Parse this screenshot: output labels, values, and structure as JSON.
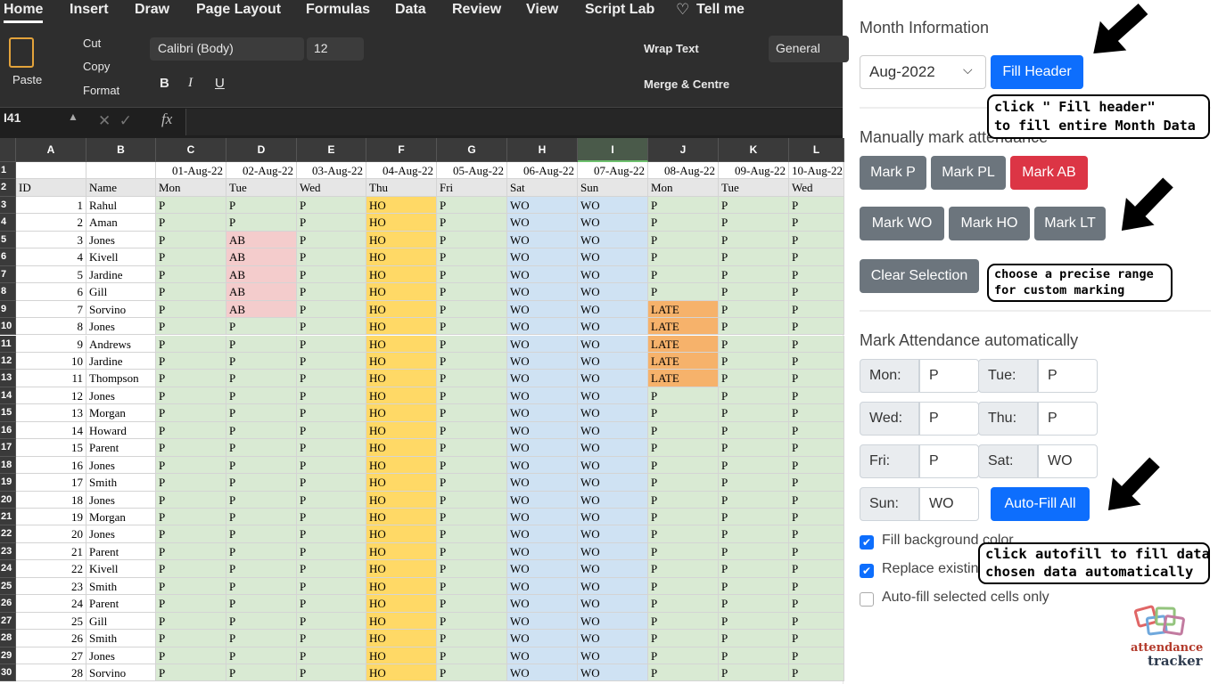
{
  "ribbon": {
    "tabs": [
      "Home",
      "Insert",
      "Draw",
      "Page Layout",
      "Formulas",
      "Data",
      "Review",
      "View",
      "Script Lab",
      "Tell me"
    ],
    "paste": "Paste",
    "cut": "Cut",
    "copy": "Copy",
    "format": "Format",
    "font": "Calibri (Body)",
    "font_size": "12",
    "bold": "B",
    "italic": "I",
    "underline": "U",
    "wrap_text": "Wrap Text",
    "merge": "Merge & Centre",
    "number_format": "General"
  },
  "formula_bar": {
    "name_box": "I41",
    "fx": "fx"
  },
  "sheet": {
    "column_letters": [
      "A",
      "B",
      "C",
      "D",
      "E",
      "F",
      "G",
      "H",
      "I",
      "J",
      "K",
      "L"
    ],
    "row_numbers": [
      1,
      2,
      3,
      4,
      5,
      6,
      7,
      8,
      9,
      10,
      11,
      12,
      13,
      14,
      15,
      16,
      17,
      18,
      19,
      20,
      21,
      22,
      23,
      24,
      25,
      26,
      27,
      28,
      29,
      30
    ],
    "dates": [
      "01-Aug-22",
      "02-Aug-22",
      "03-Aug-22",
      "04-Aug-22",
      "05-Aug-22",
      "06-Aug-22",
      "07-Aug-22",
      "08-Aug-22",
      "09-Aug-22",
      "10-Aug-22"
    ],
    "id_header": "ID",
    "name_header": "Name",
    "days": [
      "Mon",
      "Tue",
      "Wed",
      "Thu",
      "Fri",
      "Sat",
      "Sun",
      "Mon",
      "Tue",
      "Wed"
    ],
    "rows": [
      [
        1,
        "Rahul",
        "P",
        "P",
        "P",
        "HO",
        "P",
        "WO",
        "WO",
        "P",
        "P",
        "P"
      ],
      [
        2,
        "Aman",
        "P",
        "P",
        "P",
        "HO",
        "P",
        "WO",
        "WO",
        "P",
        "P",
        "P"
      ],
      [
        3,
        "Jones",
        "P",
        "AB",
        "P",
        "HO",
        "P",
        "WO",
        "WO",
        "P",
        "P",
        "P"
      ],
      [
        4,
        "Kivell",
        "P",
        "AB",
        "P",
        "HO",
        "P",
        "WO",
        "WO",
        "P",
        "P",
        "P"
      ],
      [
        5,
        "Jardine",
        "P",
        "AB",
        "P",
        "HO",
        "P",
        "WO",
        "WO",
        "P",
        "P",
        "P"
      ],
      [
        6,
        "Gill",
        "P",
        "AB",
        "P",
        "HO",
        "P",
        "WO",
        "WO",
        "P",
        "P",
        "P"
      ],
      [
        7,
        "Sorvino",
        "P",
        "AB",
        "P",
        "HO",
        "P",
        "WO",
        "WO",
        "LATE",
        "P",
        "P"
      ],
      [
        8,
        "Jones",
        "P",
        "P",
        "P",
        "HO",
        "P",
        "WO",
        "WO",
        "LATE",
        "P",
        "P"
      ],
      [
        9,
        "Andrews",
        "P",
        "P",
        "P",
        "HO",
        "P",
        "WO",
        "WO",
        "LATE",
        "P",
        "P"
      ],
      [
        10,
        "Jardine",
        "P",
        "P",
        "P",
        "HO",
        "P",
        "WO",
        "WO",
        "LATE",
        "P",
        "P"
      ],
      [
        11,
        "Thompson",
        "P",
        "P",
        "P",
        "HO",
        "P",
        "WO",
        "WO",
        "LATE",
        "P",
        "P"
      ],
      [
        12,
        "Jones",
        "P",
        "P",
        "P",
        "HO",
        "P",
        "WO",
        "WO",
        "P",
        "P",
        "P"
      ],
      [
        13,
        "Morgan",
        "P",
        "P",
        "P",
        "HO",
        "P",
        "WO",
        "WO",
        "P",
        "P",
        "P"
      ],
      [
        14,
        "Howard",
        "P",
        "P",
        "P",
        "HO",
        "P",
        "WO",
        "WO",
        "P",
        "P",
        "P"
      ],
      [
        15,
        "Parent",
        "P",
        "P",
        "P",
        "HO",
        "P",
        "WO",
        "WO",
        "P",
        "P",
        "P"
      ],
      [
        16,
        "Jones",
        "P",
        "P",
        "P",
        "HO",
        "P",
        "WO",
        "WO",
        "P",
        "P",
        "P"
      ],
      [
        17,
        "Smith",
        "P",
        "P",
        "P",
        "HO",
        "P",
        "WO",
        "WO",
        "P",
        "P",
        "P"
      ],
      [
        18,
        "Jones",
        "P",
        "P",
        "P",
        "HO",
        "P",
        "WO",
        "WO",
        "P",
        "P",
        "P"
      ],
      [
        19,
        "Morgan",
        "P",
        "P",
        "P",
        "HO",
        "P",
        "WO",
        "WO",
        "P",
        "P",
        "P"
      ],
      [
        20,
        "Jones",
        "P",
        "P",
        "P",
        "HO",
        "P",
        "WO",
        "WO",
        "P",
        "P",
        "P"
      ],
      [
        21,
        "Parent",
        "P",
        "P",
        "P",
        "HO",
        "P",
        "WO",
        "WO",
        "P",
        "P",
        "P"
      ],
      [
        22,
        "Kivell",
        "P",
        "P",
        "P",
        "HO",
        "P",
        "WO",
        "WO",
        "P",
        "P",
        "P"
      ],
      [
        23,
        "Smith",
        "P",
        "P",
        "P",
        "HO",
        "P",
        "WO",
        "WO",
        "P",
        "P",
        "P"
      ],
      [
        24,
        "Parent",
        "P",
        "P",
        "P",
        "HO",
        "P",
        "WO",
        "WO",
        "P",
        "P",
        "P"
      ],
      [
        25,
        "Gill",
        "P",
        "P",
        "P",
        "HO",
        "P",
        "WO",
        "WO",
        "P",
        "P",
        "P"
      ],
      [
        26,
        "Smith",
        "P",
        "P",
        "P",
        "HO",
        "P",
        "WO",
        "WO",
        "P",
        "P",
        "P"
      ],
      [
        27,
        "Jones",
        "P",
        "P",
        "P",
        "HO",
        "P",
        "WO",
        "WO",
        "P",
        "P",
        "P"
      ],
      [
        28,
        "Sorvino",
        "P",
        "P",
        "P",
        "HO",
        "P",
        "WO",
        "WO",
        "P",
        "P",
        "P"
      ]
    ],
    "column_fills": [
      "#d9ead3",
      "#d9ead3",
      "#d9ead3",
      "#ffd966",
      "#d9ead3",
      "#cfe2f3",
      "#cfe2f3",
      "#d9ead3",
      "#d9ead3",
      "#d9ead3"
    ],
    "cell_fills": {
      "AB": "#f4cccc",
      "LATE": "#f6b26b"
    }
  },
  "panel": {
    "month_title": "Month Information",
    "month_value": "Aug-2022",
    "fill_header": "Fill Header",
    "manual_title": "Manually mark attendance",
    "mark_buttons": [
      {
        "label": "Mark P",
        "color": "#6c757d"
      },
      {
        "label": "Mark PL",
        "color": "#6c757d"
      },
      {
        "label": "Mark AB",
        "color": "#dc3545"
      },
      {
        "label": "Mark WO",
        "color": "#6c757d"
      },
      {
        "label": "Mark HO",
        "color": "#6c757d"
      },
      {
        "label": "Mark LT",
        "color": "#6c757d"
      }
    ],
    "clear_selection": "Clear Selection",
    "auto_title": "Mark Attendance automatically",
    "day_inputs": [
      {
        "label": "Mon:",
        "value": "P"
      },
      {
        "label": "Tue:",
        "value": "P"
      },
      {
        "label": "Wed:",
        "value": "P"
      },
      {
        "label": "Thu:",
        "value": "P"
      },
      {
        "label": "Fri:",
        "value": "P"
      },
      {
        "label": "Sat:",
        "value": "WO"
      },
      {
        "label": "Sun:",
        "value": "WO"
      }
    ],
    "auto_fill": "Auto-Fill All",
    "checkboxes": [
      {
        "label": "Fill background color",
        "checked": true
      },
      {
        "label": "Replace existing data",
        "checked": true
      },
      {
        "label": "Auto-fill selected cells only",
        "checked": false
      }
    ],
    "callouts": [
      [
        "click \" Fill header\"",
        "to fill entire Month Data"
      ],
      [
        "choose a precise range",
        "for custom marking"
      ],
      [
        "click autofill to fill data",
        "chosen data automatically"
      ]
    ],
    "logo": [
      "attendance",
      "tracker"
    ]
  }
}
